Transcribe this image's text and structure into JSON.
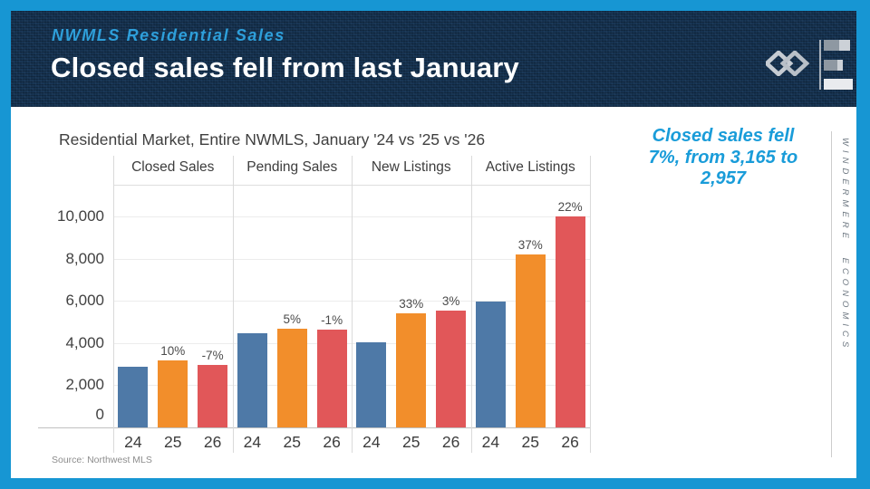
{
  "header": {
    "eyebrow": "NWMLS Residential Sales",
    "title": "Closed sales fell from last January"
  },
  "logo": {
    "w_mark": "windermere-w-diamonds",
    "chart_mark": "horizontal-bar-chart"
  },
  "annotation": {
    "lines": [
      "Closed sales fell",
      "7%, from 3,165 to",
      "2,957"
    ],
    "color": "#199cd9"
  },
  "watermark": {
    "text": "WINDERMERE ECONOMICS"
  },
  "chart": {
    "title": "Residential Market, Entire NWMLS, January '24 vs '25 vs '26",
    "source": "Source: Northwest MLS"
  },
  "colors": {
    "frame_blue": "#1796d3",
    "header_navy": "#14304d",
    "eyebrow_blue": "#2e9fda",
    "bar_blue": "#4e79a7",
    "bar_orange": "#f28e2b",
    "bar_red": "#e15759"
  },
  "chart_data": {
    "type": "bar",
    "title": "Residential Market, Entire NWMLS, January '24 vs '25 vs '26",
    "categories": [
      "Closed Sales",
      "Pending Sales",
      "New Listings",
      "Active Listings"
    ],
    "series": [
      {
        "name": "24",
        "color": "#4e79a7",
        "values": [
          2877,
          4470,
          4050,
          5970
        ],
        "labels": [
          "",
          "",
          "",
          ""
        ]
      },
      {
        "name": "25",
        "color": "#f28e2b",
        "values": [
          3165,
          4690,
          5390,
          8180
        ],
        "labels": [
          "10%",
          "5%",
          "33%",
          "37%"
        ]
      },
      {
        "name": "26",
        "color": "#e15759",
        "values": [
          2957,
          4645,
          5550,
          9980
        ],
        "labels": [
          "-7%",
          "-1%",
          "3%",
          "22%"
        ]
      }
    ],
    "ylim": [
      0,
      11500
    ],
    "yticks": [
      0,
      2000,
      4000,
      6000,
      8000,
      10000
    ],
    "ytick_labels": [
      "0",
      "2,000",
      "4,000",
      "6,000",
      "8,000",
      "10,000"
    ],
    "grid": "horizontal",
    "legend": "none",
    "xlabel": "",
    "ylabel": ""
  }
}
